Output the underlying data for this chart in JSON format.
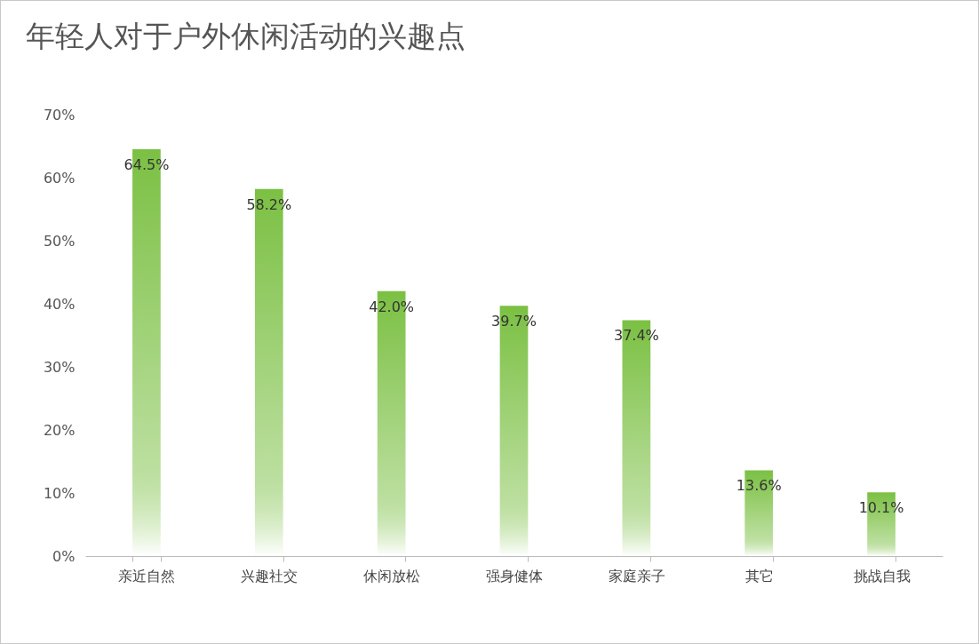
{
  "chart_data": {
    "type": "bar",
    "title": "年轻人对于户外休闲活动的兴趣点",
    "categories": [
      "亲近自然",
      "兴趣社交",
      "休闲放松",
      "强身健体",
      "家庭亲子",
      "其它",
      "挑战自我"
    ],
    "values": [
      64.5,
      58.2,
      42.0,
      39.7,
      37.4,
      13.6,
      10.1
    ],
    "value_labels": [
      "64.5%",
      "58.2%",
      "42.0%",
      "39.7%",
      "37.4%",
      "13.6%",
      "10.1%"
    ],
    "color": "#7bc043",
    "ylim": [
      0,
      70
    ],
    "yticks": [
      {
        "value": 0,
        "label": "0%"
      },
      {
        "value": 10,
        "label": "10%"
      },
      {
        "value": 20,
        "label": "20%"
      },
      {
        "value": 30,
        "label": "30%"
      },
      {
        "value": 40,
        "label": "40%"
      },
      {
        "value": 50,
        "label": "50%"
      },
      {
        "value": 60,
        "label": "60%"
      },
      {
        "value": 70,
        "label": "70%"
      }
    ],
    "grid": false
  }
}
